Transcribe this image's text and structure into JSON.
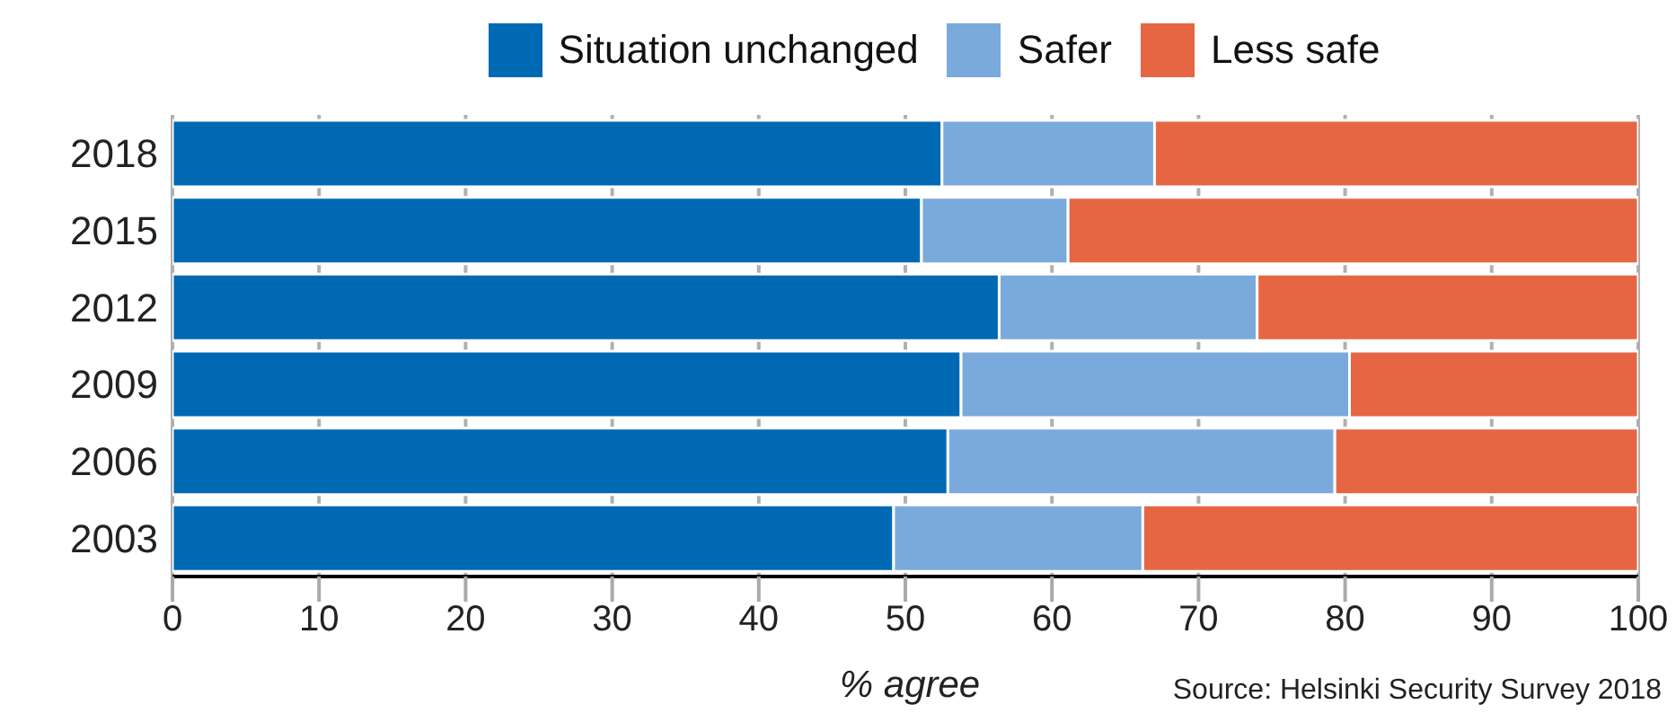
{
  "chart_data": {
    "type": "bar",
    "orientation": "horizontal",
    "stacked": true,
    "xlabel": "% agree",
    "annotations": [
      "Source: Helsinki Security Survey 2018"
    ],
    "categories": [
      "2018",
      "2015",
      "2012",
      "2009",
      "2006",
      "2003"
    ],
    "series": [
      {
        "name": "Situation unchanged",
        "color": "#0069b4",
        "values": [
          52.5,
          51.1,
          56.4,
          53.8,
          52.9,
          49.2
        ]
      },
      {
        "name": "Safer",
        "color": "#7aaadb",
        "values": [
          14.5,
          10.0,
          17.6,
          26.5,
          26.4,
          17.0
        ]
      },
      {
        "name": "Less safe",
        "color": "#e66644",
        "values": [
          33.0,
          38.9,
          26.0,
          19.7,
          20.7,
          33.8
        ]
      }
    ],
    "xlim": [
      0,
      100
    ],
    "xticks": [
      0,
      10,
      20,
      30,
      40,
      50,
      60,
      70,
      80,
      90,
      100
    ],
    "grid": "x",
    "legend": "top"
  }
}
